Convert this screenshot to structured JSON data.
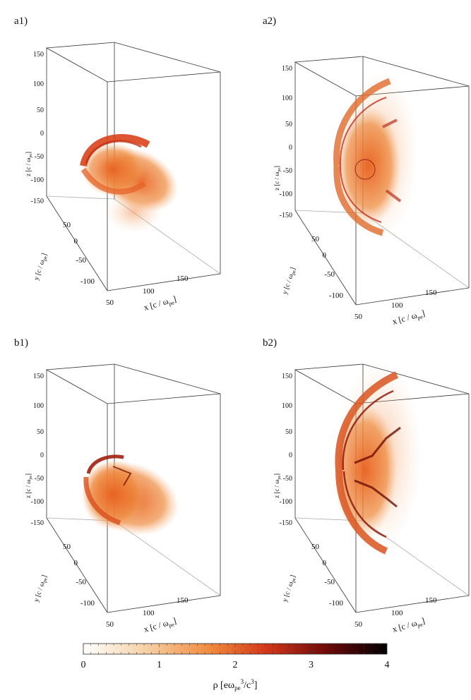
{
  "figure": {
    "panels": [
      {
        "id": "a1",
        "label": "a1)"
      },
      {
        "id": "a2",
        "label": "a2)"
      },
      {
        "id": "b1",
        "label": "b1)"
      },
      {
        "id": "b2",
        "label": "b2)"
      }
    ],
    "z_ticks": [
      "150",
      "100",
      "50",
      "0",
      "-50",
      "-100",
      "-150"
    ],
    "y_ticks": [
      "50",
      "0",
      "-50",
      "-100"
    ],
    "x_ticks": [
      "50",
      "100",
      "150"
    ],
    "z_label": "z [c / ω",
    "z_label_sub": "pe",
    "y_label": "y [c / ω",
    "y_label_sub": "pe",
    "x_label": "x [c / ω",
    "x_label_sub": "pe",
    "label_close": "]"
  },
  "colorbar": {
    "ticks": [
      "0",
      "1",
      "2",
      "3",
      "4"
    ],
    "range": [
      0,
      4
    ],
    "label_rho": "ρ [eω",
    "label_sub": "pe",
    "label_sup": "3",
    "label_mid": "/c",
    "label_sup2": "3",
    "label_close": "]",
    "colors": [
      "#ffffff",
      "#f7d2a8",
      "#f0893d",
      "#d2381a",
      "#6e0a0a",
      "#000000"
    ]
  }
}
